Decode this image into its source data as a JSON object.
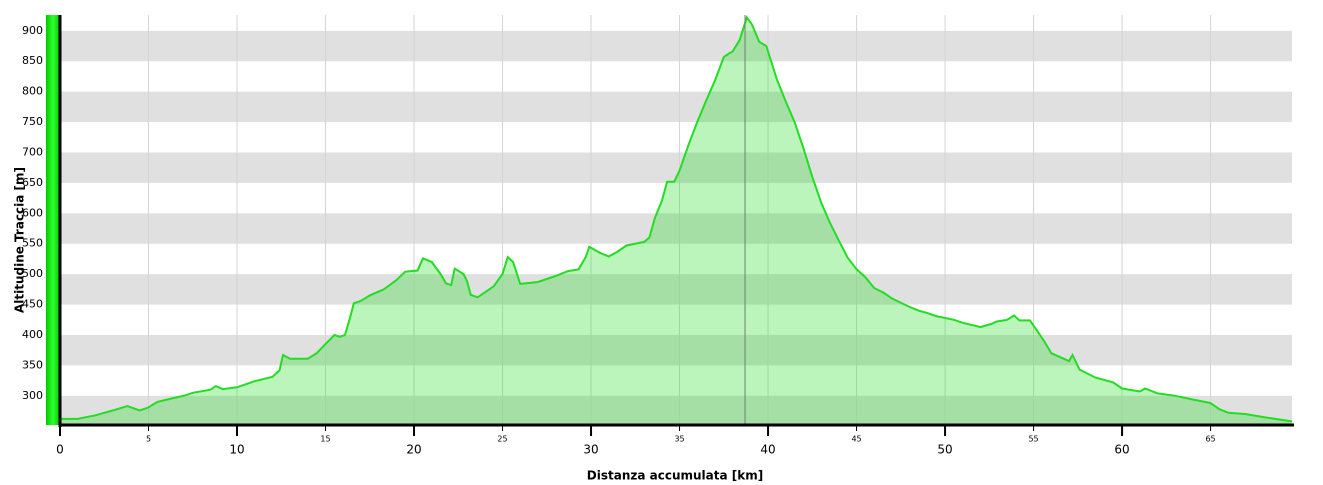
{
  "chart_data": {
    "type": "area",
    "x_label": "Distanza accumulata [km]",
    "y_label": "Altitudine Traccia [m]",
    "x": [
      0,
      1,
      2,
      3,
      3.8,
      4.5,
      5,
      5.5,
      6.5,
      7,
      7.5,
      8.5,
      8.8,
      9.2,
      10,
      10.5,
      11,
      12,
      12.4,
      12.6,
      13,
      14,
      14.5,
      15,
      15.5,
      15.8,
      16.1,
      16.4,
      16.6,
      17,
      17.5,
      18.3,
      19,
      19.5,
      20.2,
      20.5,
      21,
      21.5,
      21.8,
      22.1,
      22.3,
      22.8,
      23,
      23.2,
      23.6,
      24.5,
      25,
      25.3,
      25.6,
      26,
      27,
      28,
      28.7,
      29.3,
      29.7,
      29.9,
      30.5,
      31,
      31.5,
      32,
      33,
      33.3,
      33.6,
      34,
      34.3,
      34.7,
      35,
      35.5,
      36,
      36.5,
      37,
      37.5,
      37.8,
      38,
      38.4,
      38.8,
      39.1,
      39.5,
      39.9,
      40.5,
      41,
      41.5,
      42,
      42.5,
      43,
      43.5,
      44,
      44.5,
      45,
      45.5,
      46,
      46.5,
      47,
      48,
      48.5,
      49,
      49.5,
      50.5,
      51,
      52,
      52.6,
      52.9,
      53.5,
      53.9,
      54.2,
      54.8,
      55.6,
      56,
      57,
      57.2,
      57.6,
      58.5,
      59.5,
      60,
      61,
      61.3,
      62,
      63,
      64,
      65,
      65.5,
      66,
      67,
      68,
      69.6
    ],
    "y": [
      262,
      262,
      268,
      276,
      283,
      276,
      281,
      290,
      297,
      300,
      305,
      310,
      316,
      311,
      314,
      319,
      324,
      331,
      342,
      367,
      361,
      361,
      370,
      385,
      400,
      397,
      400,
      430,
      452,
      456,
      465,
      475,
      490,
      504,
      506,
      526,
      520,
      500,
      485,
      482,
      509,
      500,
      488,
      466,
      462,
      480,
      500,
      528,
      520,
      484,
      487,
      497,
      505,
      508,
      528,
      545,
      535,
      529,
      537,
      547,
      553,
      560,
      592,
      620,
      652,
      652,
      670,
      712,
      750,
      785,
      818,
      857,
      863,
      866,
      885,
      922,
      910,
      882,
      875,
      820,
      784,
      750,
      707,
      660,
      618,
      584,
      555,
      527,
      508,
      495,
      477,
      470,
      460,
      446,
      440,
      436,
      431,
      425,
      420,
      413,
      418,
      422,
      425,
      432,
      424,
      424,
      390,
      370,
      357,
      367,
      343,
      330,
      322,
      312,
      307,
      312,
      304,
      300,
      294,
      288,
      278,
      272,
      270,
      265,
      258
    ],
    "color": "#22dd22",
    "xlim": [
      0,
      69.6
    ],
    "ylim": [
      252,
      926
    ],
    "xticks": [
      0,
      10,
      20,
      30,
      40,
      50,
      60
    ],
    "xticks_minor": [
      5,
      15,
      25,
      35,
      45,
      55,
      65
    ],
    "yticks": [
      300,
      350,
      400,
      450,
      500,
      550,
      600,
      650,
      700,
      750,
      800,
      850,
      900
    ],
    "marker_x": 38.7,
    "grid": true
  }
}
